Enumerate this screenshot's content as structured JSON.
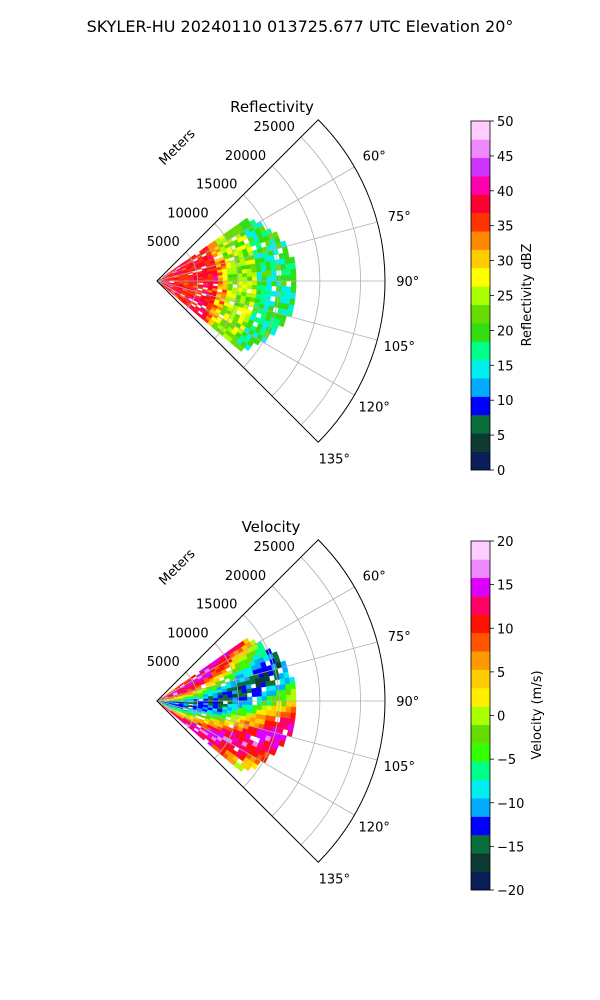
{
  "suptitle": "SKYLER-HU  20240110  013725.677 UTC Elevation 20°",
  "chart_data": [
    {
      "type": "polar-sector-heatmap",
      "title": "Reflectivity",
      "range_axis_label": "Meters",
      "range_ticks": [
        5000,
        10000,
        15000,
        20000,
        25000
      ],
      "range_tick_labels": [
        "5000",
        "10000",
        "15000",
        "20000",
        "25000"
      ],
      "range_max_m": 28000,
      "azimuth_range_deg": [
        45,
        135
      ],
      "azimuth_ticks_deg": [
        60,
        75,
        90,
        105,
        120,
        135
      ],
      "azimuth_tick_labels": [
        "60°",
        "75°",
        "90°",
        "105°",
        "120°",
        "135°"
      ],
      "grid": true,
      "colorbar": {
        "label": "Reflectivity dBZ",
        "min": 0,
        "max": 50,
        "ticks": [
          0,
          5,
          10,
          15,
          20,
          25,
          30,
          35,
          40,
          45,
          50
        ],
        "tick_labels": [
          "0",
          "5",
          "10",
          "15",
          "20",
          "25",
          "30",
          "35",
          "40",
          "45",
          "50"
        ]
      },
      "echo_extent": {
        "azimuth_deg": [
          55,
          130
        ],
        "max_range_m": 17000,
        "description_values": "strong 35-40 dBZ within ~7000 m, 20-30 dBZ beyond, 12-18 dBZ at outer edge"
      }
    },
    {
      "type": "polar-sector-heatmap",
      "title": "Velocity",
      "range_axis_label": "Meters",
      "range_ticks": [
        5000,
        10000,
        15000,
        20000,
        25000
      ],
      "range_tick_labels": [
        "5000",
        "10000",
        "15000",
        "20000",
        "25000"
      ],
      "range_max_m": 28000,
      "azimuth_range_deg": [
        45,
        135
      ],
      "azimuth_ticks_deg": [
        60,
        75,
        90,
        105,
        120,
        135
      ],
      "azimuth_tick_labels": [
        "60°",
        "75°",
        "90°",
        "105°",
        "120°",
        "135°"
      ],
      "grid": true,
      "colorbar": {
        "label": "Velocity (m/s)",
        "min": -20,
        "max": 20,
        "ticks": [
          -20,
          -15,
          -10,
          -5,
          0,
          5,
          10,
          15,
          20
        ],
        "tick_labels": [
          "−20",
          "−15",
          "−10",
          "−5",
          "0",
          "5",
          "10",
          "15",
          "20"
        ]
      },
      "echo_extent": {
        "azimuth_deg": [
          55,
          130
        ],
        "max_range_m": 17000
      }
    }
  ],
  "colors": {
    "reflectivity_cmap": [
      "#0a1f5a",
      "#0d3a30",
      "#0a6e3a",
      "#0000ff",
      "#00aaff",
      "#00eeee",
      "#00ff88",
      "#33dd11",
      "#66dd00",
      "#aaff00",
      "#ffff00",
      "#ffcc00",
      "#ff8800",
      "#ff3300",
      "#ff0033",
      "#ff00aa",
      "#cc33ff",
      "#ee88ff",
      "#ffccff"
    ],
    "velocity_cmap": [
      "#0a1f5a",
      "#0d3a30",
      "#0a6e3a",
      "#0000ff",
      "#00aaff",
      "#00eeee",
      "#00ff88",
      "#33ff00",
      "#66dd00",
      "#aaff00",
      "#ffee00",
      "#ffcc00",
      "#ff9900",
      "#ff5500",
      "#ff1100",
      "#ff0066",
      "#dd00ff",
      "#ee88ff",
      "#ffccff"
    ]
  }
}
